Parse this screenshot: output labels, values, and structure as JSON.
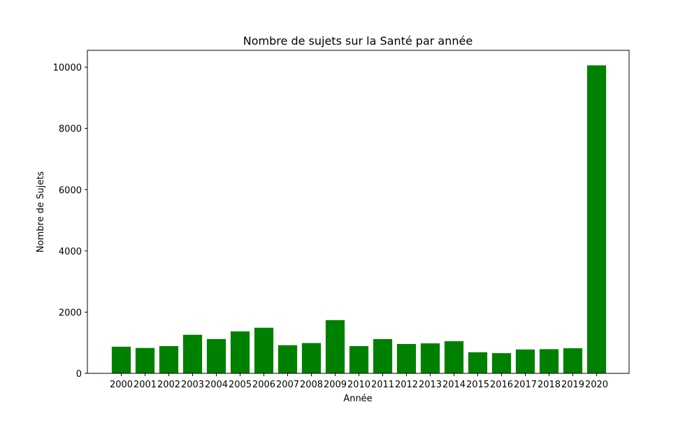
{
  "chart_data": {
    "type": "bar",
    "title": "Nombre de sujets sur la Santé par année",
    "xlabel": "Année",
    "ylabel": "Nombre de Sujets",
    "categories": [
      "2000",
      "2001",
      "2002",
      "2003",
      "2004",
      "2005",
      "2006",
      "2007",
      "2008",
      "2009",
      "2010",
      "2011",
      "2012",
      "2013",
      "2014",
      "2015",
      "2016",
      "2017",
      "2018",
      "2019",
      "2020"
    ],
    "values": [
      870,
      830,
      890,
      1260,
      1120,
      1370,
      1490,
      920,
      990,
      1740,
      890,
      1120,
      960,
      980,
      1050,
      690,
      660,
      780,
      790,
      820,
      10060
    ],
    "ylim": [
      0,
      10550
    ],
    "yticks": [
      0,
      2000,
      4000,
      6000,
      8000,
      10000
    ],
    "bar_color": "#008000",
    "grid": false,
    "legend": "none"
  }
}
